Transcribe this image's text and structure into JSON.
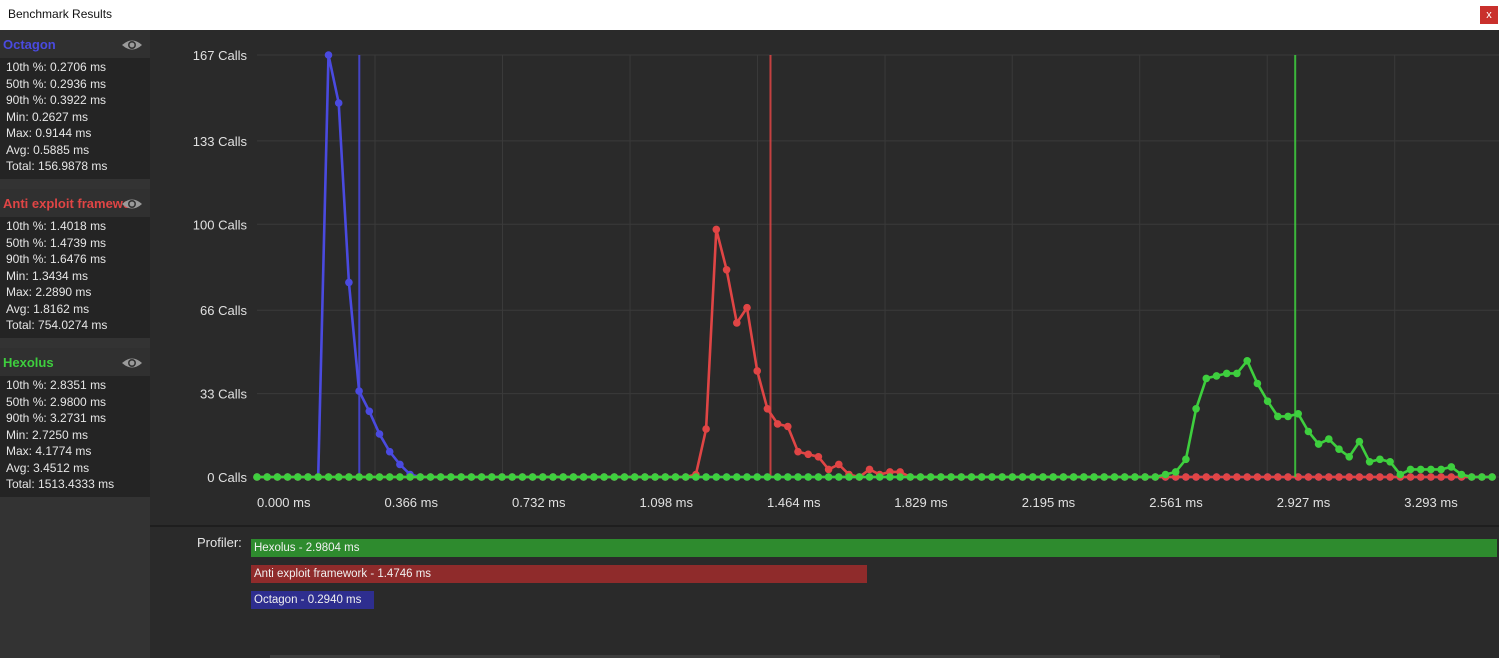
{
  "window": {
    "title": "Benchmark Results",
    "close_label": "x"
  },
  "benchmarks": [
    {
      "name": "Octagon",
      "color": "#4a4ae0",
      "stats": [
        "10th %: 0.2706 ms",
        "50th %: 0.2936 ms",
        "90th %: 0.3922 ms",
        "Min: 0.2627 ms",
        "Max: 0.9144 ms",
        "Avg: 0.5885 ms",
        "Total: 156.9878 ms"
      ]
    },
    {
      "name": "Anti exploit framework",
      "color": "#e04545",
      "stats": [
        "10th %: 1.4018 ms",
        "50th %: 1.4739 ms",
        "90th %: 1.6476 ms",
        "Min: 1.3434 ms",
        "Max: 2.2890 ms",
        "Avg: 1.8162 ms",
        "Total: 754.0274 ms"
      ]
    },
    {
      "name": "Hexolus",
      "color": "#3ecf3e",
      "stats": [
        "10th %: 2.8351 ms",
        "50th %: 2.9800 ms",
        "90th %: 3.2731 ms",
        "Min: 2.7250 ms",
        "Max: 4.1774 ms",
        "Avg: 3.4512 ms",
        "Total: 1513.4333 ms"
      ]
    }
  ],
  "chart_data": {
    "type": "line",
    "x_ticks": [
      0,
      0.366,
      0.732,
      1.098,
      1.464,
      1.829,
      2.195,
      2.561,
      2.927,
      3.293
    ],
    "x_tick_labels": [
      "0.000 ms",
      "0.366 ms",
      "0.732 ms",
      "1.098 ms",
      "1.464 ms",
      "1.829 ms",
      "2.195 ms",
      "2.561 ms",
      "2.927 ms",
      "3.293 ms"
    ],
    "y_ticks": [
      0,
      33,
      66,
      100,
      133,
      167
    ],
    "y_tick_labels": [
      "0 Calls",
      "33 Calls",
      "66 Calls",
      "100 Calls",
      "133 Calls",
      "167 Calls"
    ],
    "xlim": [
      0,
      3.565
    ],
    "ylim": [
      0,
      167
    ],
    "grid": true,
    "bin_width": 0.0293,
    "series": [
      {
        "color": "#4a4ae0",
        "marker_x": 0.2936,
        "x_start": 0.1758,
        "values": [
          0,
          167,
          148,
          77,
          34,
          26,
          17,
          10,
          5,
          1
        ]
      },
      {
        "color": "#e04545",
        "marker_x": 1.4739,
        "x_start": 1.2596,
        "values": [
          1,
          19,
          98,
          82,
          61,
          67,
          42,
          27,
          21,
          20,
          10,
          9,
          8,
          3,
          5,
          1,
          0,
          3,
          1,
          2,
          2,
          0
        ]
      },
      {
        "color": "#3ecf3e",
        "marker_x": 2.98,
        "x_start": 2.6065,
        "values": [
          1,
          2,
          7,
          27,
          39,
          40,
          41,
          41,
          46,
          37,
          30,
          24,
          24,
          25,
          18,
          13,
          15,
          11,
          8,
          14,
          6,
          7,
          6,
          1,
          3,
          3,
          3,
          3,
          4,
          1
        ]
      }
    ]
  },
  "profiler": {
    "label": "Profiler:",
    "bars": [
      {
        "label": "Hexolus - 2.9804 ms",
        "value": 2.9804,
        "color": "#2e8b2e"
      },
      {
        "label": "Anti exploit framework - 1.4746 ms",
        "value": 1.4746,
        "color": "#8f2b2b"
      },
      {
        "label": "Octagon - 0.2940 ms",
        "value": 0.294,
        "color": "#2e2e8f"
      }
    ]
  }
}
